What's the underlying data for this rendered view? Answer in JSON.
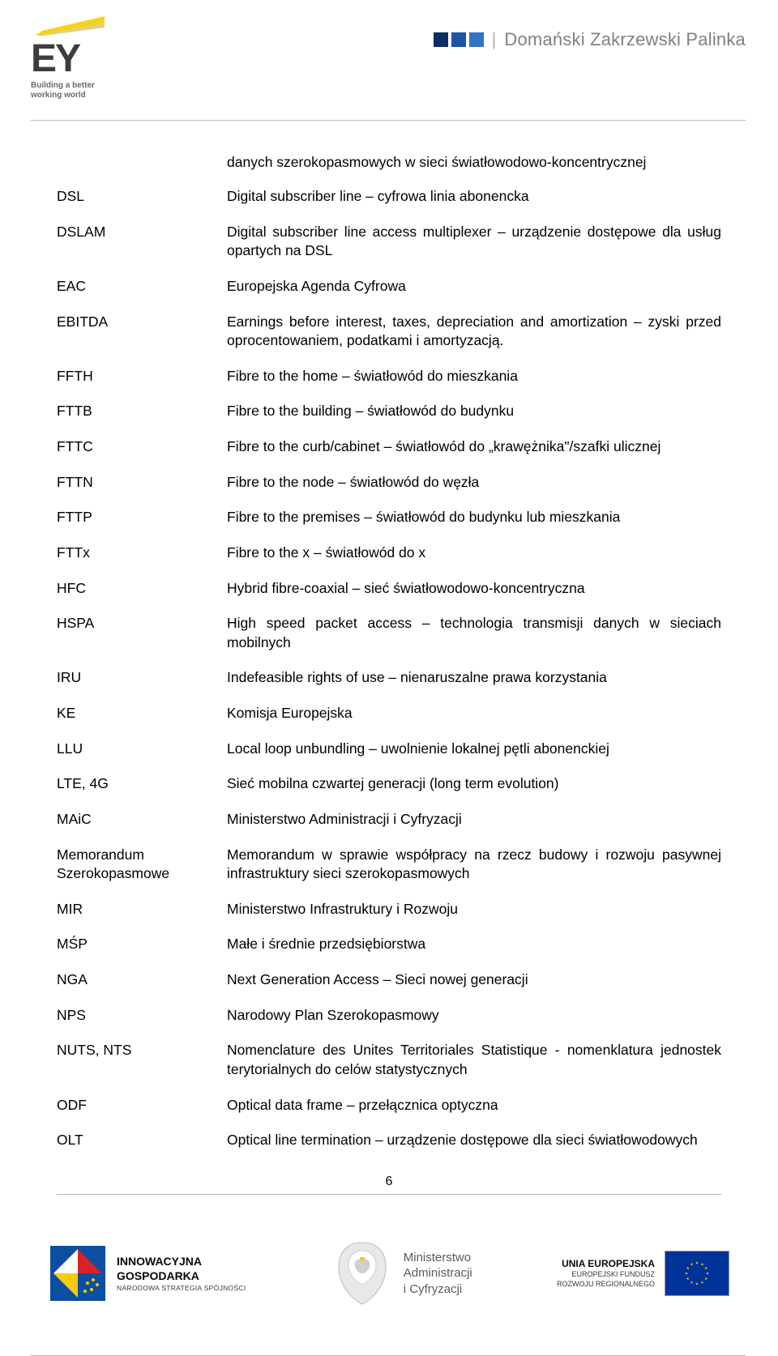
{
  "header": {
    "ey_letters": "EY",
    "ey_tagline_l1": "Building a better",
    "ey_tagline_l2": "working world",
    "right_text": "Domański Zakrzewski Palinka",
    "sq_color1": "#0b2e63",
    "sq_color2": "#1d55a0",
    "sq_color3": "#3373c4",
    "yellow": "#f7d117",
    "ey_gray": "#3d3d3d"
  },
  "intro": "danych szerokopasmowych w sieci światłowodowo-koncentrycznej",
  "rows": [
    {
      "term": "DSL",
      "desc": "Digital subscriber line – cyfrowa linia abonencka"
    },
    {
      "term": "DSLAM",
      "desc": "Digital subscriber line access multiplexer – urządzenie dostępowe dla usług opartych na DSL"
    },
    {
      "term": "EAC",
      "desc": "Europejska Agenda Cyfrowa"
    },
    {
      "term": "EBITDA",
      "desc": "Earnings before interest, taxes, depreciation and amortization – zyski przed oprocentowaniem, podatkami i amortyzacją."
    },
    {
      "term": "FFTH",
      "desc": "Fibre to the home – światłowód do mieszkania"
    },
    {
      "term": "FTTB",
      "desc": "Fibre to the building – światłowód do budynku"
    },
    {
      "term": "FTTC",
      "desc": "Fibre to the curb/cabinet – światłowód do „krawężnika\"/szafki ulicznej"
    },
    {
      "term": "FTTN",
      "desc": "Fibre to the node – światłowód do węzła"
    },
    {
      "term": "FTTP",
      "desc": "Fibre to the premises – światłowód do budynku lub mieszkania"
    },
    {
      "term": "FTTx",
      "desc": "Fibre to the x – światłowód do x"
    },
    {
      "term": "HFC",
      "desc": "Hybrid fibre-coaxial – sieć światłowodowo-koncentryczna"
    },
    {
      "term": "HSPA",
      "desc": "High speed packet access – technologia transmisji danych w sieciach mobilnych"
    },
    {
      "term": "IRU",
      "desc": "Indefeasible rights of use – nienaruszalne prawa korzystania"
    },
    {
      "term": "KE",
      "desc": "Komisja Europejska"
    },
    {
      "term": "LLU",
      "desc": "Local loop unbundling – uwolnienie lokalnej pętli abonenckiej"
    },
    {
      "term": "LTE, 4G",
      "desc": "Sieć mobilna czwartej generacji (long term evolution)"
    },
    {
      "term": "MAiC",
      "desc": "Ministerstwo Administracji i Cyfryzacji"
    },
    {
      "term": "Memorandum Szerokopasmowe",
      "desc": "Memorandum w sprawie współpracy na rzecz budowy i rozwoju pasywnej infrastruktury sieci szerokopasmowych"
    },
    {
      "term": "MIR",
      "desc": "Ministerstwo Infrastruktury i Rozwoju"
    },
    {
      "term": "MŚP",
      "desc": "Małe i średnie przedsiębiorstwa"
    },
    {
      "term": "NGA",
      "desc": "Next Generation Access – Sieci nowej generacji"
    },
    {
      "term": "NPS",
      "desc": "Narodowy Plan Szerokopasmowy"
    },
    {
      "term": "NUTS, NTS",
      "desc": "Nomenclature des Unites Territoriales Statistique - nomenklatura jednostek terytorialnych do celów statystycznych"
    },
    {
      "term": "ODF",
      "desc": "Optical data frame – przełącznica optyczna"
    },
    {
      "term": "OLT",
      "desc": "Optical line termination – urządzenie dostępowe dla sieci światłowodowych"
    }
  ],
  "page_number": "6",
  "footer": {
    "ig_title": "INNOWACYJNA",
    "ig_title2": "GOSPODARKA",
    "ig_sub": "NARODOWA STRATEGIA SPÓJNOŚCI",
    "min_l1": "Ministerstwo",
    "min_l2": "Administracji",
    "min_l3": "i Cyfryzacji",
    "eu_title": "UNIA EUROPEJSKA",
    "eu_l1": "EUROPEJSKI FUNDUSZ",
    "eu_l2": "ROZWOJU REGIONALNEGO",
    "ig_colors": {
      "blue": "#0b4ea2",
      "red": "#d8232a",
      "yellow": "#f9c90e",
      "white": "#ffffff"
    },
    "eu_flag_bg": "#003399",
    "eu_star": "#ffcc00"
  }
}
